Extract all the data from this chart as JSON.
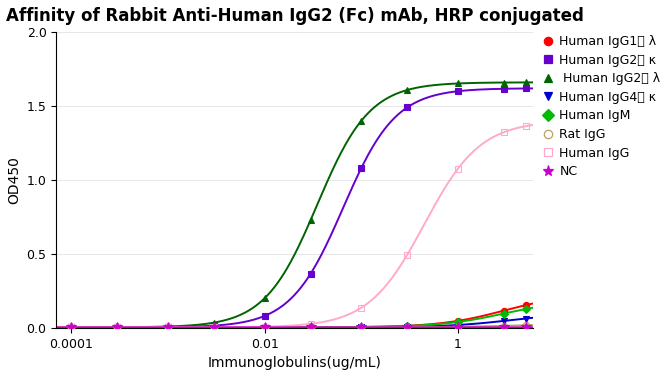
{
  "title": "Affinity of Rabbit Anti-Human IgG2 (Fc) mAb, HRP conjugated",
  "xlabel": "Immunoglobulins(ug/mL)",
  "ylabel": "OD450",
  "xlim_low": 7e-05,
  "xlim_high": 6.0,
  "ylim": [
    0.0,
    2.0
  ],
  "yticks": [
    0.0,
    0.5,
    1.0,
    1.5,
    2.0
  ],
  "xtick_vals": [
    0.0001,
    0.01,
    1
  ],
  "xtick_labels": [
    "0.0001",
    "0.01",
    "1"
  ],
  "series": [
    {
      "name": "Human IgG1， λ",
      "color": "#ff0000",
      "marker": "o",
      "marker_fill": "full",
      "ec50": 3.0,
      "top": 0.23,
      "bottom": 0.003,
      "hillslope": 1.3
    },
    {
      "name": "Human IgG2， κ",
      "color": "#6600cc",
      "marker": "s",
      "marker_fill": "full",
      "ec50": 0.065,
      "top": 1.62,
      "bottom": 0.003,
      "hillslope": 1.6
    },
    {
      "name": " Human IgG2， λ",
      "color": "#006400",
      "marker": "^",
      "marker_fill": "full",
      "ec50": 0.035,
      "top": 1.66,
      "bottom": 0.003,
      "hillslope": 1.6
    },
    {
      "name": "Human IgG4， κ",
      "color": "#0000cc",
      "marker": "v",
      "marker_fill": "full",
      "ec50": 3.5,
      "top": 0.1,
      "bottom": 0.003,
      "hillslope": 1.3
    },
    {
      "name": "Human IgM",
      "color": "#00bb00",
      "marker": "D",
      "marker_fill": "full",
      "ec50": 3.0,
      "top": 0.19,
      "bottom": 0.003,
      "hillslope": 1.3
    },
    {
      "name": "Rat IgG",
      "color": "#b8a060",
      "marker": "o",
      "marker_fill": "none",
      "ec50": 8.0,
      "top": 0.04,
      "bottom": 0.003,
      "hillslope": 1.0
    },
    {
      "name": "Human IgG",
      "color": "#ffaacc",
      "marker": "s",
      "marker_fill": "none",
      "ec50": 0.45,
      "top": 1.4,
      "bottom": 0.003,
      "hillslope": 1.5
    },
    {
      "name": "NC",
      "color": "#cc00cc",
      "marker": "*",
      "marker_fill": "full",
      "ec50": 500.0,
      "top": 0.015,
      "bottom": 0.003,
      "hillslope": 1.0
    }
  ],
  "x_data": [
    0.0001,
    0.0003,
    0.001,
    0.003,
    0.01,
    0.03,
    0.1,
    0.3,
    1.0,
    3.0,
    5.0
  ],
  "background_color": "#ffffff",
  "title_fontsize": 12,
  "axis_fontsize": 10,
  "tick_fontsize": 9,
  "legend_fontsize": 9
}
